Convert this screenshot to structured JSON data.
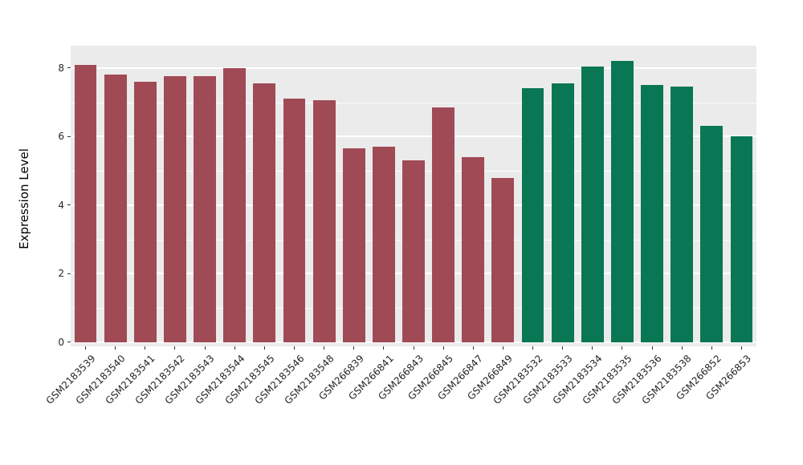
{
  "chart_data": {
    "type": "bar",
    "title": "",
    "xlabel": "",
    "ylabel": "Expression Level",
    "ylim": [
      0,
      8.65
    ],
    "yticks": [
      0,
      2,
      4,
      6,
      8
    ],
    "yticks_minor": [
      1,
      3,
      5,
      7
    ],
    "grid": true,
    "legend_position": "none",
    "panel_bg": "#EBEBEB",
    "grid_color": "#FFFFFF",
    "categories": [
      "GSM2183539",
      "GSM2183540",
      "GSM2183541",
      "GSM2183542",
      "GSM2183543",
      "GSM2183544",
      "GSM2183545",
      "GSM2183546",
      "GSM2183548",
      "GSM266839",
      "GSM266841",
      "GSM266843",
      "GSM266845",
      "GSM266847",
      "GSM266849",
      "GSM2183532",
      "GSM2183533",
      "GSM2183534",
      "GSM2183535",
      "GSM2183536",
      "GSM2183538",
      "GSM266852",
      "GSM266853"
    ],
    "values": [
      8.1,
      7.8,
      7.6,
      7.75,
      7.75,
      8.0,
      7.55,
      7.1,
      7.05,
      5.65,
      5.7,
      5.3,
      6.85,
      5.4,
      4.8,
      7.4,
      7.55,
      8.05,
      8.2,
      7.5,
      7.45,
      6.3,
      6.0
    ],
    "groups": [
      "group1",
      "group1",
      "group1",
      "group1",
      "group1",
      "group1",
      "group1",
      "group1",
      "group1",
      "group1",
      "group1",
      "group1",
      "group1",
      "group1",
      "group1",
      "group2",
      "group2",
      "group2",
      "group2",
      "group2",
      "group2",
      "group2",
      "group2"
    ],
    "group_colors": {
      "group1": "#A04A56",
      "group2": "#097654"
    }
  }
}
